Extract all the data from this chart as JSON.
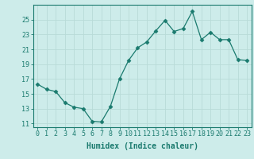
{
  "x": [
    0,
    1,
    2,
    3,
    4,
    5,
    6,
    7,
    8,
    9,
    10,
    11,
    12,
    13,
    14,
    15,
    16,
    17,
    18,
    19,
    20,
    21,
    22,
    23
  ],
  "y": [
    16.3,
    15.6,
    15.3,
    13.8,
    13.2,
    13.0,
    11.3,
    11.2,
    13.3,
    17.0,
    19.5,
    21.2,
    22.0,
    23.5,
    24.9,
    23.4,
    23.8,
    26.1,
    22.3,
    23.3,
    22.3,
    22.3,
    19.6,
    19.5
  ],
  "xlabel": "Humidex (Indice chaleur)",
  "line_color": "#1a7a6e",
  "marker": "D",
  "marker_size": 2.5,
  "bg_color": "#cdecea",
  "grid_color": "#b8dbd8",
  "axis_color": "#1a7a6e",
  "xlim": [
    -0.5,
    23.5
  ],
  "ylim": [
    10.5,
    27.0
  ],
  "yticks": [
    11,
    13,
    15,
    17,
    19,
    21,
    23,
    25
  ],
  "xticks": [
    0,
    1,
    2,
    3,
    4,
    5,
    6,
    7,
    8,
    9,
    10,
    11,
    12,
    13,
    14,
    15,
    16,
    17,
    18,
    19,
    20,
    21,
    22,
    23
  ],
  "xlabel_fontsize": 7,
  "tick_fontsize": 6,
  "linewidth": 0.9
}
